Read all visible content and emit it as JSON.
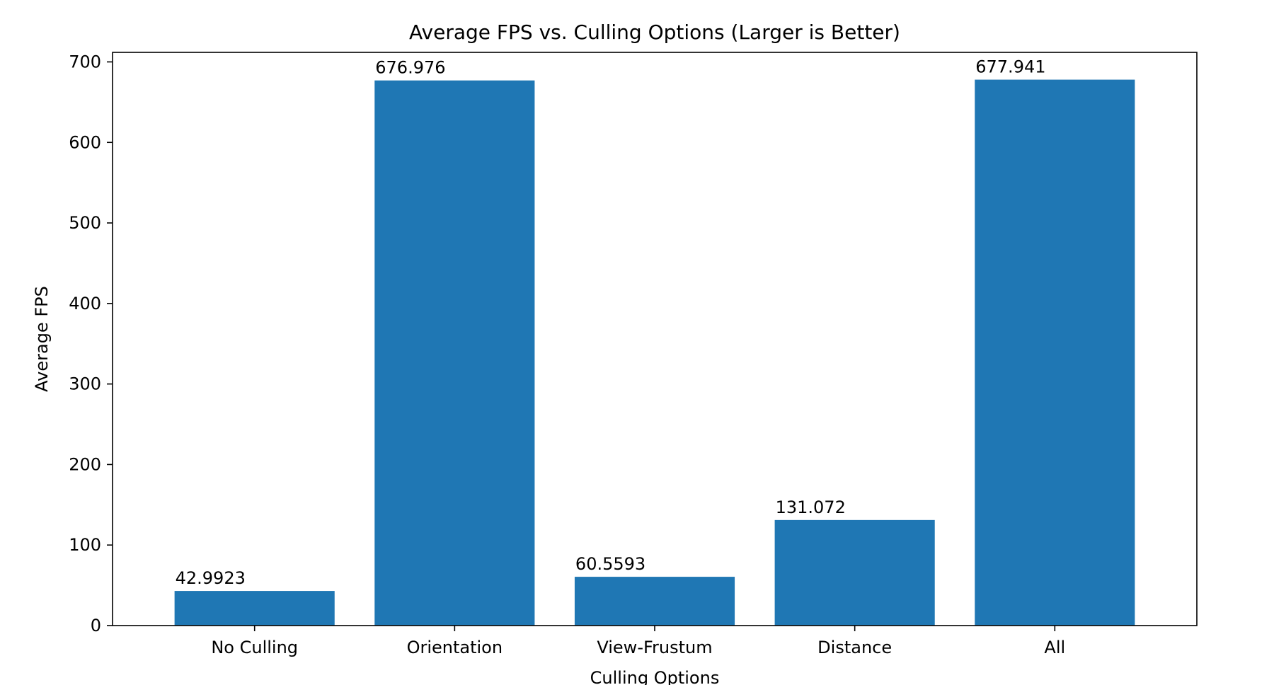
{
  "chart_data": {
    "type": "bar",
    "title": "Average FPS vs. Culling Options (Larger is Better)",
    "xlabel": "Culling Options",
    "ylabel": "Average FPS",
    "categories": [
      "No Culling",
      "Orientation",
      "View-Frustum",
      "Distance",
      "All"
    ],
    "values": [
      42.9923,
      676.976,
      60.5593,
      131.072,
      677.941
    ],
    "data_labels": [
      "42.9923",
      "676.976",
      "60.5593",
      "131.072",
      "677.941"
    ],
    "ylim": [
      0,
      711.84
    ],
    "yticks": [
      0,
      100,
      200,
      300,
      400,
      500,
      600,
      700
    ],
    "grid": false,
    "legend": "none",
    "bar_color": "#1f77b4"
  }
}
